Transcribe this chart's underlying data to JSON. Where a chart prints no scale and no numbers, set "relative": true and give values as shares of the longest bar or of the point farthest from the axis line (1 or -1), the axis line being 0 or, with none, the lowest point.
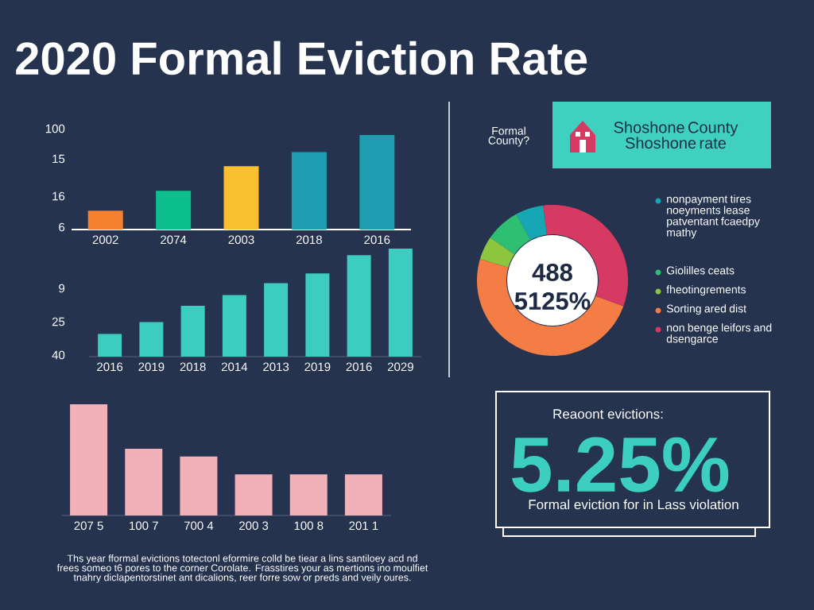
{
  "chart_data": [
    {
      "type": "bar",
      "relative": true,
      "title": "2020 Formal Eviction Rate",
      "categories": [
        "2002",
        "2074",
        "2003",
        "2018",
        "2016"
      ],
      "values": [
        0.2,
        0.41,
        0.67,
        0.82,
        1
      ],
      "colors": [
        "#f5812f",
        "#0cbf8c",
        "#fbc02d",
        "#1f9db0",
        "#1f9db0"
      ],
      "annotations": [
        "100",
        "15",
        "16",
        "6"
      ]
    },
    {
      "type": "bar",
      "relative": true,
      "categories": [
        "2016",
        "2019",
        "2018",
        "2014",
        "2013",
        "2019",
        "2016",
        "2029"
      ],
      "values": [
        0.21,
        0.32,
        0.47,
        0.57,
        0.68,
        0.77,
        0.94,
        1
      ],
      "color": "#3cccc0",
      "annotations": [
        "9",
        "25",
        "40"
      ]
    },
    {
      "type": "bar",
      "relative": true,
      "categories": [
        "207 5",
        "100 7",
        "700 4",
        "200 3",
        "100 8",
        "201 1"
      ],
      "values": [
        1,
        0.6,
        0.53,
        0.37,
        0.37,
        0.37
      ],
      "color": "#f2b1b9",
      "annotations": [
        "Ths year fformal evictions totectonl eformire colld be tiear a lins santiloey acd nd frees someo t6 pores to the corner Corolate. Frasstires your as mertions ino moulfiet tnahry diclapentorstinet ant dicalions, reer forre sow or preds and veily oures."
      ]
    },
    {
      "type": "donut",
      "title": "Formal County?",
      "subtitle": "Shoshone County Shoshone rate",
      "categories": [
        "nonpayment tires noeyments lease patventant fcaedpy mathy",
        "Giolilles ceats",
        "fheotingrements",
        "Sorting ared dist",
        "non benge leifors and dsengarce"
      ],
      "values": [
        6,
        7.5,
        5,
        49,
        32.5
      ],
      "colors": [
        "#17a6b4",
        "#2fbf73",
        "#8cc63f",
        "#f47c45",
        "#d63a63"
      ],
      "legend": "right",
      "annotations": [
        "488",
        "5125%"
      ]
    },
    {
      "type": "other",
      "title": "Reaoont evictions:",
      "annotations": [
        "5.25%",
        "Formal eviction for in Lass violation"
      ]
    }
  ]
}
